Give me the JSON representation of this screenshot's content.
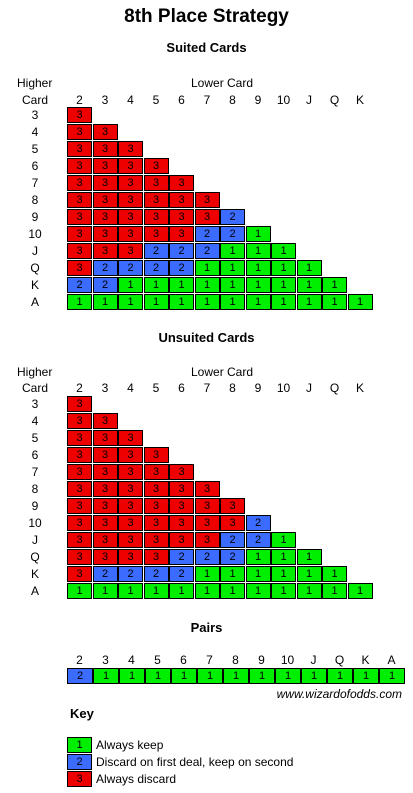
{
  "title": "8th Place Strategy",
  "higher_label": [
    "Higher",
    "Card"
  ],
  "lower_label": "Lower Card",
  "suited": {
    "heading": "Suited Cards",
    "lower": [
      "2",
      "3",
      "4",
      "5",
      "6",
      "7",
      "8",
      "9",
      "10",
      "J",
      "Q",
      "K"
    ],
    "rows": [
      {
        "card": "3",
        "values": [
          3
        ]
      },
      {
        "card": "4",
        "values": [
          3,
          3
        ]
      },
      {
        "card": "5",
        "values": [
          3,
          3,
          3
        ]
      },
      {
        "card": "6",
        "values": [
          3,
          3,
          3,
          3
        ]
      },
      {
        "card": "7",
        "values": [
          3,
          3,
          3,
          3,
          3
        ]
      },
      {
        "card": "8",
        "values": [
          3,
          3,
          3,
          3,
          3,
          3
        ]
      },
      {
        "card": "9",
        "values": [
          3,
          3,
          3,
          3,
          3,
          3,
          2
        ]
      },
      {
        "card": "10",
        "values": [
          3,
          3,
          3,
          3,
          3,
          2,
          2,
          1
        ]
      },
      {
        "card": "J",
        "values": [
          3,
          3,
          3,
          2,
          2,
          2,
          1,
          1,
          1
        ]
      },
      {
        "card": "Q",
        "values": [
          3,
          2,
          2,
          2,
          2,
          1,
          1,
          1,
          1,
          1
        ]
      },
      {
        "card": "K",
        "values": [
          2,
          2,
          1,
          1,
          1,
          1,
          1,
          1,
          1,
          1,
          1
        ]
      },
      {
        "card": "A",
        "values": [
          1,
          1,
          1,
          1,
          1,
          1,
          1,
          1,
          1,
          1,
          1,
          1
        ]
      }
    ]
  },
  "unsuited": {
    "heading": "Unsuited Cards",
    "lower": [
      "2",
      "3",
      "4",
      "5",
      "6",
      "7",
      "8",
      "9",
      "10",
      "J",
      "Q",
      "K"
    ],
    "rows": [
      {
        "card": "3",
        "values": [
          3
        ]
      },
      {
        "card": "4",
        "values": [
          3,
          3
        ]
      },
      {
        "card": "5",
        "values": [
          3,
          3,
          3
        ]
      },
      {
        "card": "6",
        "values": [
          3,
          3,
          3,
          3
        ]
      },
      {
        "card": "7",
        "values": [
          3,
          3,
          3,
          3,
          3
        ]
      },
      {
        "card": "8",
        "values": [
          3,
          3,
          3,
          3,
          3,
          3
        ]
      },
      {
        "card": "9",
        "values": [
          3,
          3,
          3,
          3,
          3,
          3,
          3
        ]
      },
      {
        "card": "10",
        "values": [
          3,
          3,
          3,
          3,
          3,
          3,
          3,
          2
        ]
      },
      {
        "card": "J",
        "values": [
          3,
          3,
          3,
          3,
          3,
          3,
          2,
          2,
          1
        ]
      },
      {
        "card": "Q",
        "values": [
          3,
          3,
          3,
          3,
          2,
          2,
          2,
          1,
          1,
          1
        ]
      },
      {
        "card": "K",
        "values": [
          3,
          2,
          2,
          2,
          2,
          1,
          1,
          1,
          1,
          1,
          1
        ]
      },
      {
        "card": "A",
        "values": [
          1,
          1,
          1,
          1,
          1,
          1,
          1,
          1,
          1,
          1,
          1,
          1
        ]
      }
    ]
  },
  "pairs": {
    "heading": "Pairs",
    "ranks": [
      "2",
      "3",
      "4",
      "5",
      "6",
      "7",
      "8",
      "9",
      "10",
      "J",
      "Q",
      "K",
      "A"
    ],
    "values": [
      2,
      1,
      1,
      1,
      1,
      1,
      1,
      1,
      1,
      1,
      1,
      1,
      1
    ]
  },
  "website": "www.wizardofodds.com",
  "key": {
    "heading": "Key",
    "items": [
      {
        "value": 1,
        "label": "Always keep"
      },
      {
        "value": 2,
        "label": "Discard on first deal, keep on second"
      },
      {
        "value": 3,
        "label": "Always discard"
      }
    ]
  },
  "colors": {
    "1": "#00ee00",
    "2": "#3b6bff",
    "3": "#ee0000"
  }
}
